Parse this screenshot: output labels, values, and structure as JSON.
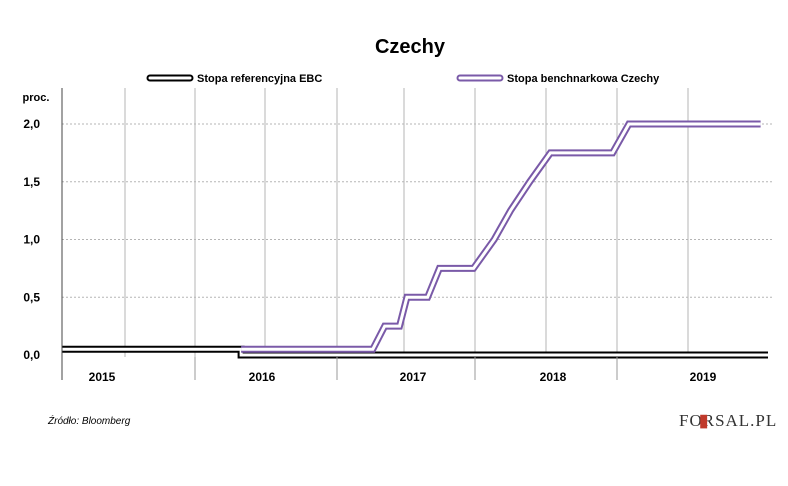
{
  "chart_data": {
    "type": "line",
    "title": "Czechy",
    "unit_label": "proc.",
    "x_tick_labels": [
      "2015",
      "2016",
      "2017",
      "2018",
      "2019"
    ],
    "y_tick_labels": [
      "0,0",
      "0,5",
      "1,0",
      "1,5",
      "2,0"
    ],
    "ylim": [
      0,
      2.1
    ],
    "xlim": [
      2015.0,
      2019.77
    ],
    "grid": true,
    "legend_position": "top",
    "series": [
      {
        "name": "Stopa referencyjna EBC",
        "color": "#000000",
        "line_style": "double",
        "points": [
          [
            2015.0,
            0.05
          ],
          [
            2016.21,
            0.05
          ],
          [
            2016.21,
            0.0
          ],
          [
            2019.77,
            0.0
          ]
        ]
      },
      {
        "name": "Stopa benchnarkowa Czechy",
        "color": "#7a5aa8",
        "line_style": "double",
        "points": [
          [
            2016.21,
            0.05
          ],
          [
            2017.1,
            0.05
          ],
          [
            2017.18,
            0.25
          ],
          [
            2017.28,
            0.25
          ],
          [
            2017.33,
            0.5
          ],
          [
            2017.47,
            0.5
          ],
          [
            2017.55,
            0.75
          ],
          [
            2017.78,
            0.75
          ],
          [
            2017.92,
            1.0
          ],
          [
            2018.03,
            1.25
          ],
          [
            2018.16,
            1.5
          ],
          [
            2018.3,
            1.75
          ],
          [
            2018.72,
            1.75
          ],
          [
            2018.83,
            2.0
          ],
          [
            2019.72,
            2.0
          ]
        ]
      }
    ]
  },
  "footer": {
    "source": "Źródło: Bloomberg",
    "brand": "FORSAL.PL"
  },
  "colors": {
    "grid": "#b5b5b5",
    "axis": "#000000",
    "accent": "#c0392b"
  }
}
